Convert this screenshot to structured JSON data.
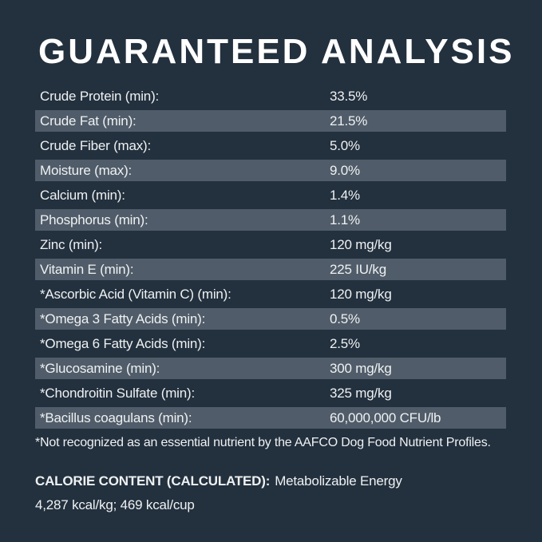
{
  "page": {
    "background_color": "#23303e",
    "stripe_color": "#505c69",
    "text_color": "#eef1f2",
    "title_color": "#ffffff"
  },
  "title": "GUARANTEED ANALYSIS",
  "analysis_rows": [
    {
      "label": "Crude Protein (min):",
      "value": "33.5%"
    },
    {
      "label": "Crude Fat (min):",
      "value": "21.5%"
    },
    {
      "label": "Crude Fiber (max):",
      "value": "5.0%"
    },
    {
      "label": "Moisture (max):",
      "value": "9.0%"
    },
    {
      "label": "Calcium (min):",
      "value": "1.4%"
    },
    {
      "label": "Phosphorus (min):",
      "value": "1.1%"
    },
    {
      "label": "Zinc (min):",
      "value": "120 mg/kg"
    },
    {
      "label": "Vitamin E (min):",
      "value": "225 IU/kg"
    },
    {
      "label": "*Ascorbic Acid (Vitamin C) (min):",
      "value": "120 mg/kg"
    },
    {
      "label": "*Omega 3 Fatty Acids (min):",
      "value": "0.5%"
    },
    {
      "label": "*Omega 6 Fatty Acids (min):",
      "value": "2.5%"
    },
    {
      "label": "*Glucosamine (min):",
      "value": "300 mg/kg"
    },
    {
      "label": "*Chondroitin Sulfate (min):",
      "value": "325 mg/kg"
    },
    {
      "label": "*Bacillus coagulans (min):",
      "value": "60,000,000 CFU/lb"
    }
  ],
  "footnote": "*Not recognized as an essential nutrient by the AAFCO Dog Food Nutrient Profiles.",
  "calorie": {
    "label": "CALORIE CONTENT (CALCULATED):",
    "description": "Metabolizable Energy",
    "values": "4,287 kcal/kg; 469 kcal/cup"
  }
}
